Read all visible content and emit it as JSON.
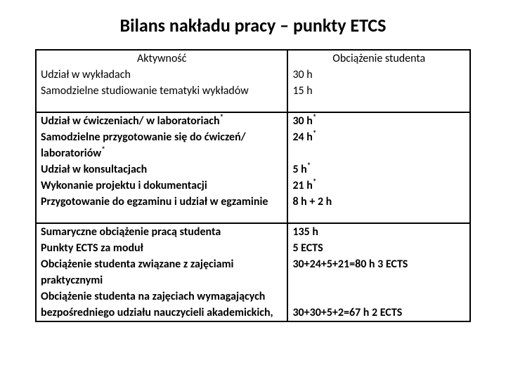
{
  "title": "Bilans nakładu pracy – punkty ETCS",
  "headers": {
    "activity": "Aktywność",
    "load": "Obciążenie studenta"
  },
  "section1": {
    "r1": {
      "activity": "Udział w wykładach",
      "load": "30 h"
    },
    "r2": {
      "activity": "Samodzielne studiowanie tematyki wykładów",
      "load": "15 h"
    }
  },
  "section2": {
    "r1": {
      "activity_pre": "Udział w ćwiczeniach/ w laboratoriach",
      "load_pre": "30 h"
    },
    "r2": {
      "activity": "Samodzielne przygotowanie się do ćwiczeń/",
      "load_pre": "24 h"
    },
    "r3": {
      "activity_pre": "laboratoriów",
      "load": ""
    },
    "r4": {
      "activity": "Udział w konsultacjach",
      "load_pre": "5 h"
    },
    "r5": {
      "activity": "Wykonanie projektu i dokumentacji",
      "load_pre": "21 h"
    },
    "r6": {
      "activity": "Przygotowanie do egzaminu i udział w egzaminie",
      "load": "8 h + 2 h"
    }
  },
  "section3": {
    "r1": {
      "activity": "Sumaryczne obciążenie pracą studenta",
      "load": "135 h"
    },
    "r2": {
      "activity": "Punkty ECTS za moduł",
      "load": "5 ECTS"
    },
    "r3": {
      "activity": "Obciążenie studenta związane z zajęciami",
      "load": "30+24+5+21=80 h  3 ECTS"
    },
    "r4": {
      "activity": "praktycznymi",
      "load": ""
    },
    "r5": {
      "activity": "Obciążenie studenta na zajęciach wymagających",
      "load": ""
    },
    "r6": {
      "activity": "bezpośredniego udziału nauczycieli akademickich,",
      "load": "30+30+5+2=67 h  2 ECTS"
    }
  },
  "colors": {
    "background": "#ffffff",
    "text": "#000000",
    "border": "#000000"
  }
}
